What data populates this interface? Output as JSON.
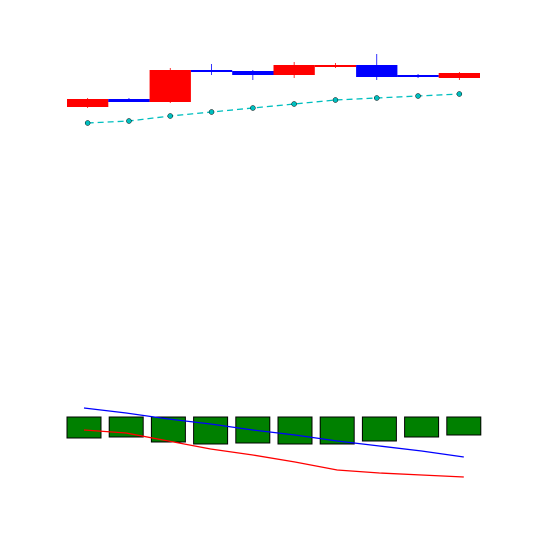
{
  "chart_data": [
    {
      "type": "candlestick",
      "open": [
        31,
        28,
        60,
        58,
        55,
        65,
        65,
        53,
        53,
        57
      ],
      "close": [
        23,
        31,
        28,
        60,
        59,
        55,
        63,
        65,
        55,
        52
      ],
      "high": [
        32,
        32,
        62,
        66,
        60,
        68,
        67,
        76,
        56,
        58
      ],
      "low": [
        22,
        28,
        27,
        55,
        50,
        52,
        62,
        50,
        52,
        50
      ],
      "up_color": "#0000ff",
      "down_color": "#ff0000",
      "series": [
        {
          "color": "#00bfbf",
          "linestyle": "dashed",
          "marker": "circle",
          "values": [
            7,
            9,
            14,
            18,
            22,
            26,
            30,
            32,
            34,
            36
          ]
        }
      ],
      "ylim": [
        0,
        90
      ]
    },
    {
      "type": "bar",
      "values": [
        -21,
        -20,
        -25,
        -27,
        -26,
        -27,
        -27,
        -24,
        -20,
        -18
      ],
      "color": "#008000",
      "edgecolor": "#000000",
      "series": [
        {
          "color": "#0000ff",
          "values": [
            9,
            4,
            -2,
            -7,
            -13,
            -18,
            -24,
            -29,
            -34,
            -40
          ]
        },
        {
          "color": "#ff0000",
          "values": [
            -13,
            -16,
            -24,
            -32,
            -38,
            -45,
            -53,
            -56,
            -58,
            -60
          ]
        }
      ],
      "ylim": [
        -83,
        37
      ]
    }
  ]
}
